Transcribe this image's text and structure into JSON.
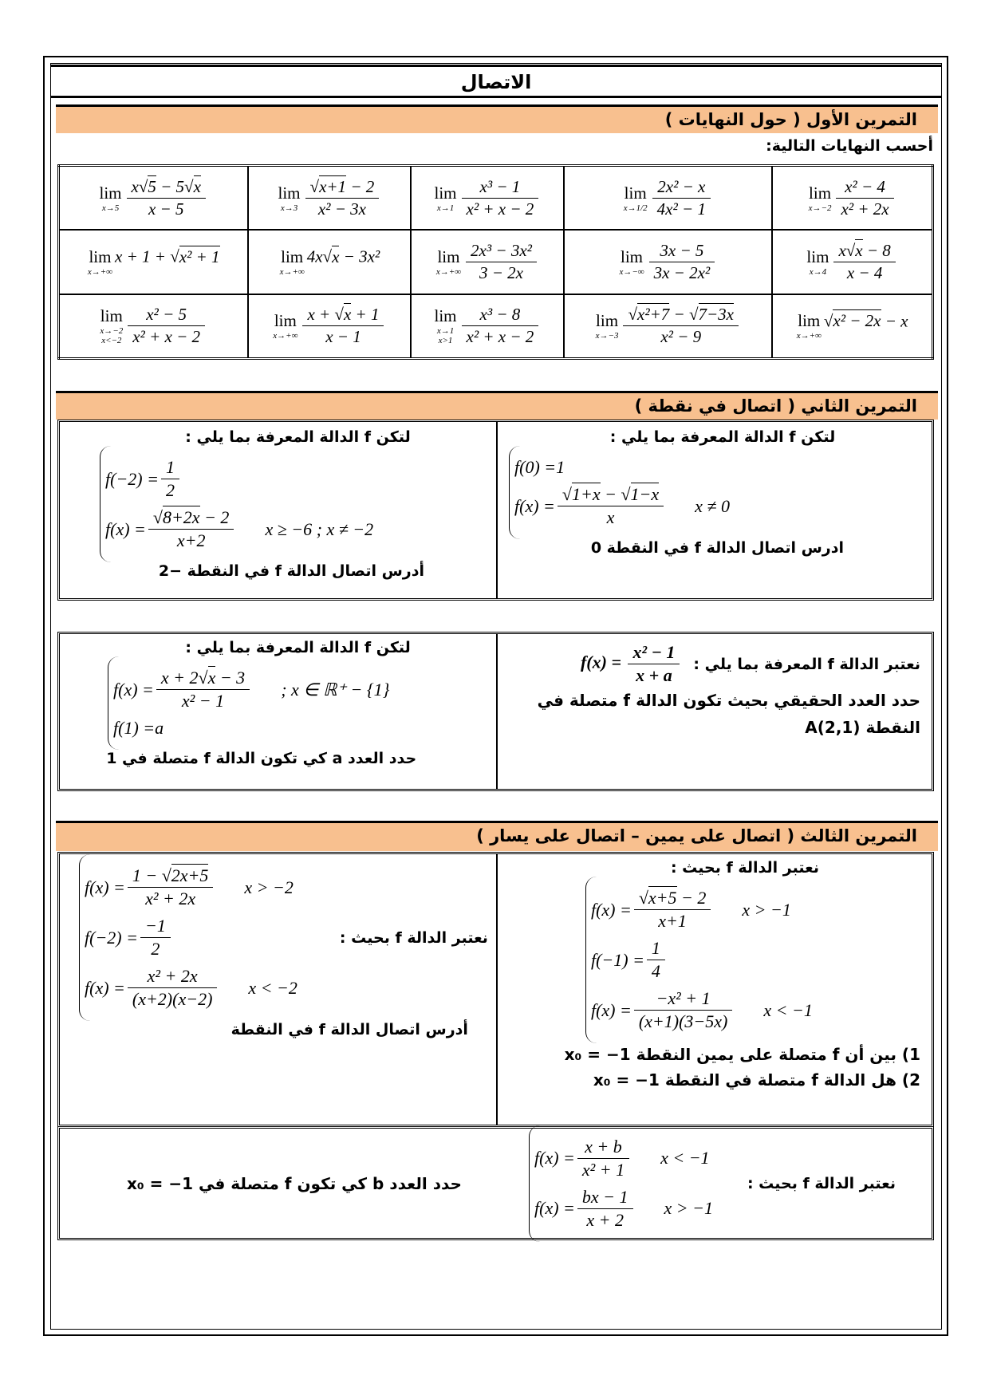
{
  "title": "الاتصال",
  "ex1": {
    "header": "التمرين الأول ( حول النهايات )",
    "instruction": "أحسب النهايات التالية:",
    "rows": [
      [
        {
          "sub": "x→−2",
          "num": "x² − 4",
          "den": "x² + 2x"
        },
        {
          "sub": "x→1/2",
          "num": "2x² − x",
          "den": "4x² − 1"
        },
        {
          "sub": "x→1",
          "num": "x³ − 1",
          "den": "x² + x − 2"
        },
        {
          "sub": "x→3",
          "num": "√(x+1) − 2",
          "den": "x² − 3x"
        },
        {
          "sub": "x→5",
          "num": "x√(5) − 5√(x)",
          "den": "x − 5"
        }
      ],
      [
        {
          "sub": "x→4",
          "num": "x√(x) − 8",
          "den": "x − 4"
        },
        {
          "sub": "x→−∞",
          "num": "3x − 5",
          "den": "3x − 2x²"
        },
        {
          "sub": "x→+∞",
          "num": "2x³ − 3x²",
          "den": "3 − 2x"
        },
        {
          "sub": "x→+∞",
          "expr": "4x√(x) − 3x²"
        },
        {
          "sub": "x→+∞",
          "expr": "x + 1 + √(x² + 1)"
        }
      ],
      [
        {
          "sub": "x→+∞",
          "expr": "√(x² − 2x) − x"
        },
        {
          "sub": "x→−3",
          "num": "√(x²+7) − √(7−3x)",
          "den": "x² − 9"
        },
        {
          "sub": "x→1",
          "sub2": "x>1",
          "num": "x³ − 8",
          "den": "x² + x − 2"
        },
        {
          "sub": "x→+∞",
          "num": "x + √(x) + 1",
          "den": "x − 1"
        },
        {
          "sub": "x→−2",
          "sub2": "x<−2",
          "num": "x² − 5",
          "den": "x² + x − 2"
        }
      ]
    ]
  },
  "ex2": {
    "header": "التمرين الثاني ( اتصال في نقطة )",
    "box1": {
      "right": {
        "intro": "لتكن f الدالة المعرفة بما يلي :",
        "pieces": [
          {
            "lhs": "f(0) = ",
            "val": "1"
          },
          {
            "lhs": "f(x) = ",
            "num": "√(1+x) − √(1−x)",
            "den": "x",
            "cond": "x ≠ 0"
          }
        ],
        "question": "ادرس اتصال الدالة f في النقطة 0"
      },
      "left": {
        "intro": "لتكن f الدالة المعرفة بما يلي :",
        "pieces": [
          {
            "lhs": "f(−2) = ",
            "num": "1",
            "den": "2"
          },
          {
            "lhs": "f(x) = ",
            "num": "√(8+2x) − 2",
            "den": "x+2",
            "cond": "x ≥ −6  ;  x ≠ −2"
          }
        ],
        "question": "أدرس اتصال الدالة f في النقطة −2"
      }
    },
    "box2": {
      "right": {
        "intro": "نعتبر الدالة f المعرفة بما يلي :",
        "lhs": "f(x) = ",
        "num": "x² − 1",
        "den": "x + a",
        "question": "حدد العدد الحقيقي بحيث تكون الدالة f متصلة في",
        "question2": "النقطة A(2,1)"
      },
      "left": {
        "intro": "لتكن f الدالة المعرفة بما يلي :",
        "pieces": [
          {
            "lhs": "f(x) = ",
            "num": "x + 2√(x) − 3",
            "den": "x² − 1",
            "cond": ";   x ∈ ℝ⁺ − {1}"
          },
          {
            "lhs": "f(1) = ",
            "val": "a"
          }
        ],
        "question": "حدد العدد a كي تكون الدالة f متصلة في 1"
      }
    }
  },
  "ex3": {
    "header": "التمرين الثالث ( اتصال على يمين – اتصال على يسار )",
    "box1": {
      "right": {
        "intro": "نعتبر الدالة f بحيث :",
        "pieces": [
          {
            "lhs": "f(x) = ",
            "num": "√(x+5) − 2",
            "den": "x+1",
            "cond": "x > −1"
          },
          {
            "lhs": "f(−1) = ",
            "num": "1",
            "den": "4"
          },
          {
            "lhs": "f(x) = ",
            "num": "−x² + 1",
            "den": "(x+1)(3−5x)",
            "cond": "x < −1"
          }
        ],
        "q1": "1) بين أن f متصلة على يمين النقطة x₀ = −1",
        "q2": "2) هل الدالة f متصلة في النقطة x₀ = −1"
      },
      "left": {
        "intro": "نعتبر الدالة f بحيث :",
        "pieces": [
          {
            "lhs": "f(x) = ",
            "num": "1 − √(2x+5)",
            "den": "x² + 2x",
            "cond": "x > −2"
          },
          {
            "lhs": "f(−2) = ",
            "num": "−1",
            "den": "2"
          },
          {
            "lhs": "f(x) = ",
            "num": "x² + 2x",
            "den": "(x+2)(x−2)",
            "cond": "x < −2"
          }
        ],
        "question": "أدرس اتصال الدالة f في النقطة"
      }
    },
    "box2": {
      "intro": "نعتبر الدالة f بحيث :",
      "pieces": [
        {
          "lhs": "f(x) = ",
          "num": "x + b",
          "den": "x² + 1",
          "cond": "x < −1"
        },
        {
          "lhs": "f(x) = ",
          "num": "bx − 1",
          "den": "x + 2",
          "cond": "x > −1"
        }
      ],
      "question": "حدد العدد b كي تكون f متصلة في x₀ = −1"
    }
  },
  "colors": {
    "header_bg": "#F8C08F",
    "border": "#000000"
  }
}
